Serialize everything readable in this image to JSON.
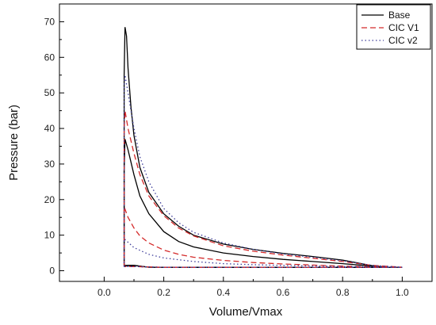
{
  "chart_data": {
    "type": "line",
    "title": "",
    "xlabel": "Volume/Vmax",
    "ylabel": "Pressure (bar)",
    "xlim": [
      -0.15,
      1.1
    ],
    "ylim": [
      -3,
      75
    ],
    "x_ticks": [
      "0.0",
      "0.2",
      "0.4",
      "0.6",
      "0.8",
      "1.0"
    ],
    "y_ticks": [
      "0",
      "10",
      "20",
      "30",
      "40",
      "50",
      "60",
      "70"
    ],
    "grid": false,
    "legend_position": "top-right",
    "series": [
      {
        "name": "Base",
        "color": "#000000",
        "dash": "solid",
        "loops": [
          [
            [
              0.067,
              1.2
            ],
            [
              0.067,
              55
            ],
            [
              0.07,
              68.5
            ],
            [
              0.075,
              66
            ],
            [
              0.08,
              57
            ],
            [
              0.09,
              46
            ],
            [
              0.1,
              38
            ],
            [
              0.12,
              29
            ],
            [
              0.15,
              22
            ],
            [
              0.2,
              16
            ],
            [
              0.25,
              12.5
            ],
            [
              0.3,
              10
            ],
            [
              0.4,
              7.5
            ],
            [
              0.5,
              6
            ],
            [
              0.6,
              4.9
            ],
            [
              0.7,
              4
            ],
            [
              0.8,
              3
            ],
            [
              0.85,
              2.2
            ],
            [
              0.9,
              1.4
            ],
            [
              0.95,
              1
            ],
            [
              1.0,
              1
            ],
            [
              0.9,
              0.95
            ],
            [
              0.8,
              0.95
            ],
            [
              0.6,
              0.95
            ],
            [
              0.4,
              0.95
            ],
            [
              0.25,
              0.95
            ],
            [
              0.15,
              1
            ],
            [
              0.1,
              1.5
            ],
            [
              0.08,
              1.5
            ],
            [
              0.067,
              1.2
            ]
          ],
          [
            [
              0.067,
              1.5
            ],
            [
              0.067,
              28
            ],
            [
              0.07,
              37
            ],
            [
              0.08,
              34
            ],
            [
              0.1,
              27
            ],
            [
              0.12,
              21
            ],
            [
              0.15,
              16
            ],
            [
              0.2,
              11
            ],
            [
              0.25,
              8.2
            ],
            [
              0.3,
              6.7
            ],
            [
              0.4,
              5
            ],
            [
              0.5,
              4
            ],
            [
              0.6,
              3.2
            ],
            [
              0.7,
              2.6
            ],
            [
              0.8,
              2
            ],
            [
              0.9,
              1.3
            ],
            [
              0.95,
              1
            ],
            [
              1.0,
              1
            ],
            [
              0.9,
              0.95
            ],
            [
              0.7,
              0.95
            ],
            [
              0.5,
              0.95
            ],
            [
              0.3,
              0.95
            ],
            [
              0.15,
              1
            ],
            [
              0.1,
              1.5
            ],
            [
              0.067,
              1.5
            ]
          ]
        ]
      },
      {
        "name": "CIC V1",
        "color": "#d42a2a",
        "dash": "dashed",
        "loops": [
          [
            [
              0.067,
              1.2
            ],
            [
              0.067,
              40
            ],
            [
              0.07,
              45
            ],
            [
              0.08,
              40
            ],
            [
              0.1,
              33
            ],
            [
              0.12,
              27
            ],
            [
              0.15,
              21
            ],
            [
              0.2,
              15.5
            ],
            [
              0.25,
              12
            ],
            [
              0.3,
              9.8
            ],
            [
              0.4,
              7
            ],
            [
              0.5,
              5.5
            ],
            [
              0.6,
              4.4
            ],
            [
              0.7,
              3.5
            ],
            [
              0.8,
              2.6
            ],
            [
              0.9,
              1.5
            ],
            [
              1.0,
              1
            ],
            [
              0.8,
              0.95
            ],
            [
              0.5,
              0.95
            ],
            [
              0.2,
              0.95
            ],
            [
              0.1,
              1.2
            ],
            [
              0.067,
              1.2
            ]
          ],
          [
            [
              0.067,
              1.2
            ],
            [
              0.067,
              18
            ],
            [
              0.08,
              15
            ],
            [
              0.1,
              12
            ],
            [
              0.12,
              9.8
            ],
            [
              0.15,
              7.8
            ],
            [
              0.2,
              5.8
            ],
            [
              0.25,
              4.6
            ],
            [
              0.3,
              3.8
            ],
            [
              0.4,
              2.9
            ],
            [
              0.5,
              2.3
            ],
            [
              0.6,
              1.9
            ],
            [
              0.7,
              1.6
            ],
            [
              0.8,
              1.3
            ],
            [
              0.9,
              1.1
            ],
            [
              1.0,
              1
            ],
            [
              0.8,
              0.95
            ],
            [
              0.5,
              0.95
            ],
            [
              0.2,
              0.95
            ],
            [
              0.1,
              1.2
            ],
            [
              0.067,
              1.2
            ]
          ]
        ]
      },
      {
        "name": "CIC v2",
        "color": "#3d3d9a",
        "dash": "dotted",
        "loops": [
          [
            [
              0.067,
              1.2
            ],
            [
              0.067,
              52
            ],
            [
              0.07,
              55
            ],
            [
              0.08,
              50
            ],
            [
              0.1,
              40
            ],
            [
              0.12,
              32
            ],
            [
              0.15,
              25
            ],
            [
              0.2,
              17.5
            ],
            [
              0.25,
              13.5
            ],
            [
              0.3,
              10.8
            ],
            [
              0.4,
              7.8
            ],
            [
              0.5,
              6
            ],
            [
              0.6,
              4.7
            ],
            [
              0.7,
              3.8
            ],
            [
              0.8,
              2.8
            ],
            [
              0.9,
              1.5
            ],
            [
              1.0,
              1
            ],
            [
              0.8,
              0.95
            ],
            [
              0.5,
              0.95
            ],
            [
              0.2,
              0.95
            ],
            [
              0.1,
              1.2
            ],
            [
              0.067,
              1.2
            ]
          ],
          [
            [
              0.067,
              1.2
            ],
            [
              0.067,
              9
            ],
            [
              0.08,
              8
            ],
            [
              0.1,
              6.5
            ],
            [
              0.15,
              4.6
            ],
            [
              0.2,
              3.6
            ],
            [
              0.3,
              2.6
            ],
            [
              0.4,
              2
            ],
            [
              0.5,
              1.7
            ],
            [
              0.6,
              1.5
            ],
            [
              0.8,
              1.2
            ],
            [
              1.0,
              1
            ],
            [
              0.8,
              0.95
            ],
            [
              0.5,
              0.95
            ],
            [
              0.2,
              0.95
            ],
            [
              0.1,
              1.2
            ],
            [
              0.067,
              1.2
            ]
          ]
        ]
      }
    ]
  }
}
